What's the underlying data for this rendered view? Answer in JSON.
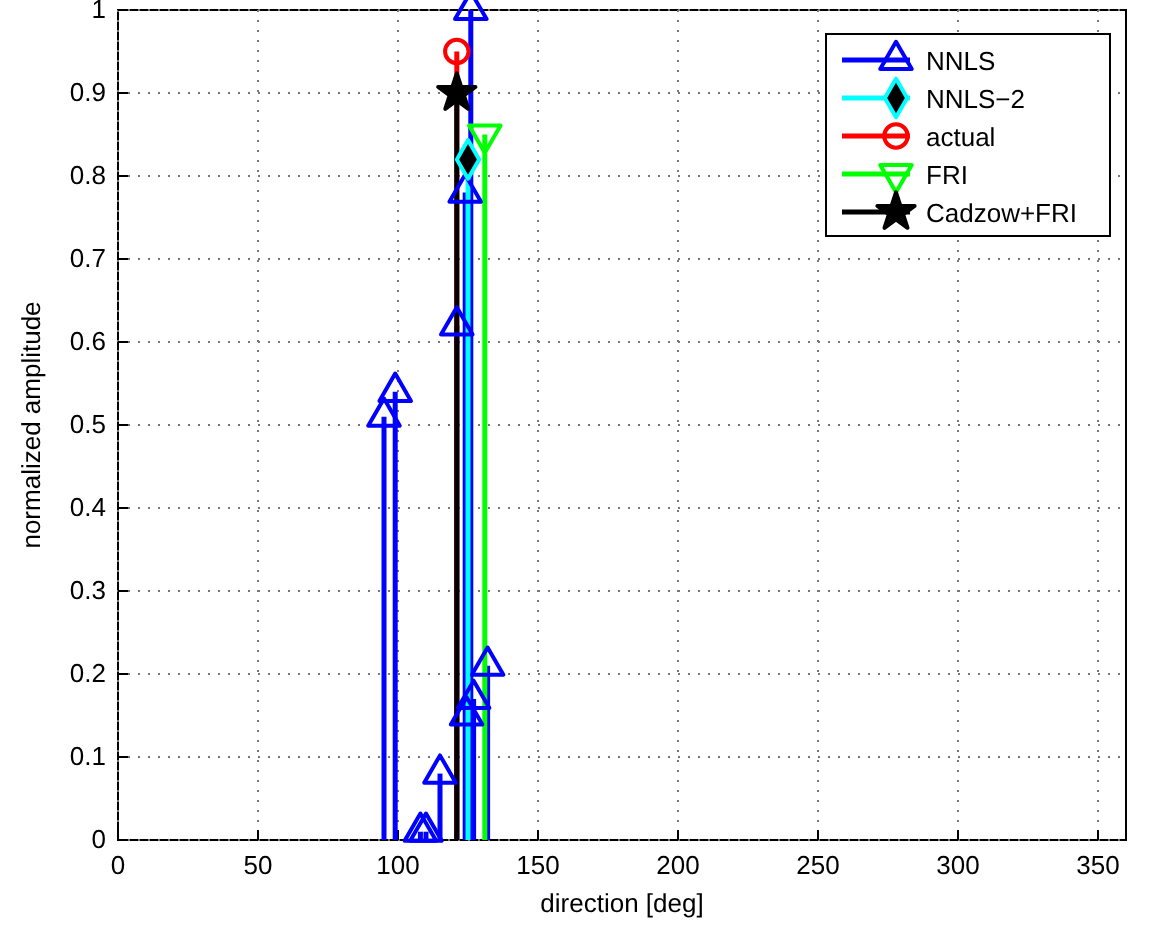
{
  "chart_data": {
    "type": "lollipop",
    "xlabel": "direction [deg]",
    "ylabel": "normalized amplitude",
    "xlim": [
      0,
      360
    ],
    "xticks": [
      0,
      50,
      100,
      150,
      200,
      250,
      300,
      350
    ],
    "ylim": [
      0,
      1
    ],
    "yticks": [
      0,
      0.1,
      0.2,
      0.3,
      0.4,
      0.5,
      0.6,
      0.7,
      0.8,
      0.9,
      1
    ],
    "grid": true,
    "legend": "top right",
    "series": [
      {
        "name": "NNLS",
        "color": "#0000ff",
        "marker": "triangle",
        "x": [
          95,
          99,
          108,
          110,
          115,
          121,
          124,
          124.5,
          126,
          127,
          132
        ],
        "values": [
          0.51,
          0.54,
          0.01,
          0.01,
          0.08,
          0.62,
          0.78,
          0.15,
          1.0,
          0.17,
          0.21
        ]
      },
      {
        "name": "NNLS−2",
        "color": "#00ffff",
        "marker": "diamond",
        "x": [
          125
        ],
        "values": [
          0.82
        ]
      },
      {
        "name": "actual",
        "color": "#ff0000",
        "marker": "circle",
        "x": [
          121
        ],
        "values": [
          0.95
        ]
      },
      {
        "name": "FRI",
        "color": "#00ff00",
        "marker": "triangle_down",
        "x": [
          131
        ],
        "values": [
          0.85
        ]
      },
      {
        "name": "Cadzow+FRI",
        "color": "#000000",
        "marker": "star",
        "x": [
          121
        ],
        "values": [
          0.9
        ]
      }
    ]
  }
}
